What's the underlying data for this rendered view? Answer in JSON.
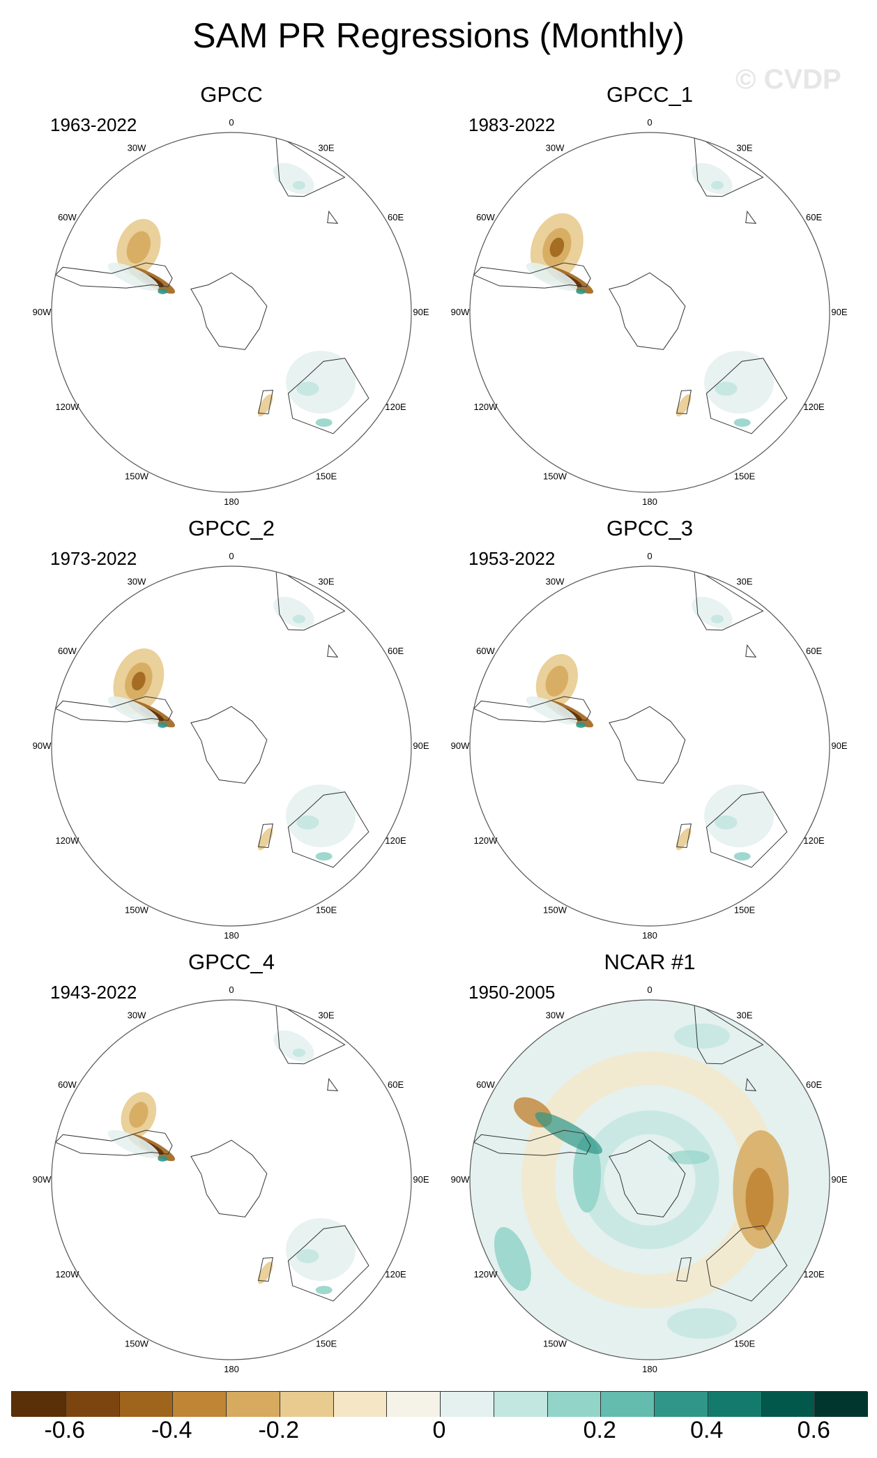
{
  "title": "SAM PR Regressions (Monthly)",
  "watermark": "© CVDP",
  "panels": [
    {
      "title": "GPCC",
      "period": "1963-2022",
      "variant": "obs",
      "strength": 1.0
    },
    {
      "title": "GPCC_1",
      "period": "1983-2022",
      "variant": "obs",
      "strength": 1.2
    },
    {
      "title": "GPCC_2",
      "period": "1973-2022",
      "variant": "obs",
      "strength": 1.15
    },
    {
      "title": "GPCC_3",
      "period": "1953-2022",
      "variant": "obs",
      "strength": 0.95
    },
    {
      "title": "GPCC_4",
      "period": "1943-2022",
      "variant": "obs",
      "strength": 0.8
    },
    {
      "title": "NCAR #1",
      "period": "1950-2005",
      "variant": "model",
      "strength": 1.0
    }
  ],
  "map_labels": [
    "0",
    "30E",
    "60E",
    "90E",
    "120E",
    "150E",
    "180",
    "150W",
    "120W",
    "90W",
    "60W",
    "30W"
  ],
  "colorbar": {
    "colors": [
      "#5a3008",
      "#7c4510",
      "#a0651c",
      "#c18536",
      "#d6aa5f",
      "#e8cb8f",
      "#f5e7c6",
      "#f5f2e8",
      "#e4f1ef",
      "#c2e6e0",
      "#93d4c9",
      "#63bcad",
      "#2f9688",
      "#147a6c",
      "#03584c",
      "#01362e"
    ],
    "tick_labels": [
      "-0.6",
      "-0.4",
      "-0.2",
      "0",
      "0.2",
      "0.4",
      "0.6"
    ],
    "tick_values": [
      -0.6,
      -0.4,
      -0.2,
      0,
      0.2,
      0.4,
      0.6
    ],
    "levels": [
      -0.7,
      -0.6,
      -0.5,
      -0.4,
      -0.3,
      -0.2,
      -0.1,
      -0.05,
      0,
      0.05,
      0.1,
      0.2,
      0.3,
      0.4,
      0.5,
      0.6,
      0.7
    ]
  }
}
